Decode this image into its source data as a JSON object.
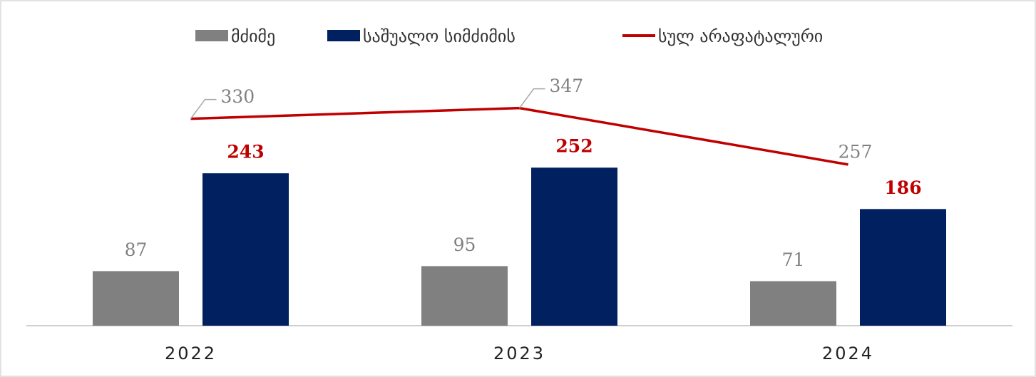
{
  "chart_data": {
    "type": "bar",
    "categories": [
      "2022",
      "2023",
      "2024"
    ],
    "series": [
      {
        "name": "მძიმე",
        "color": "#808080",
        "label_color": "#808080",
        "values": [
          87,
          95,
          71
        ]
      },
      {
        "name": "საშუალო სიმძიმის",
        "color": "#002060",
        "label_color": "#c00000",
        "values": [
          243,
          252,
          186
        ]
      },
      {
        "name": "სულ არაფატალური",
        "type": "line",
        "color": "#c00000",
        "label_color": "#808080",
        "values": [
          330,
          347,
          257
        ]
      }
    ],
    "ylim": [
      0,
      400
    ],
    "legend": "top"
  }
}
